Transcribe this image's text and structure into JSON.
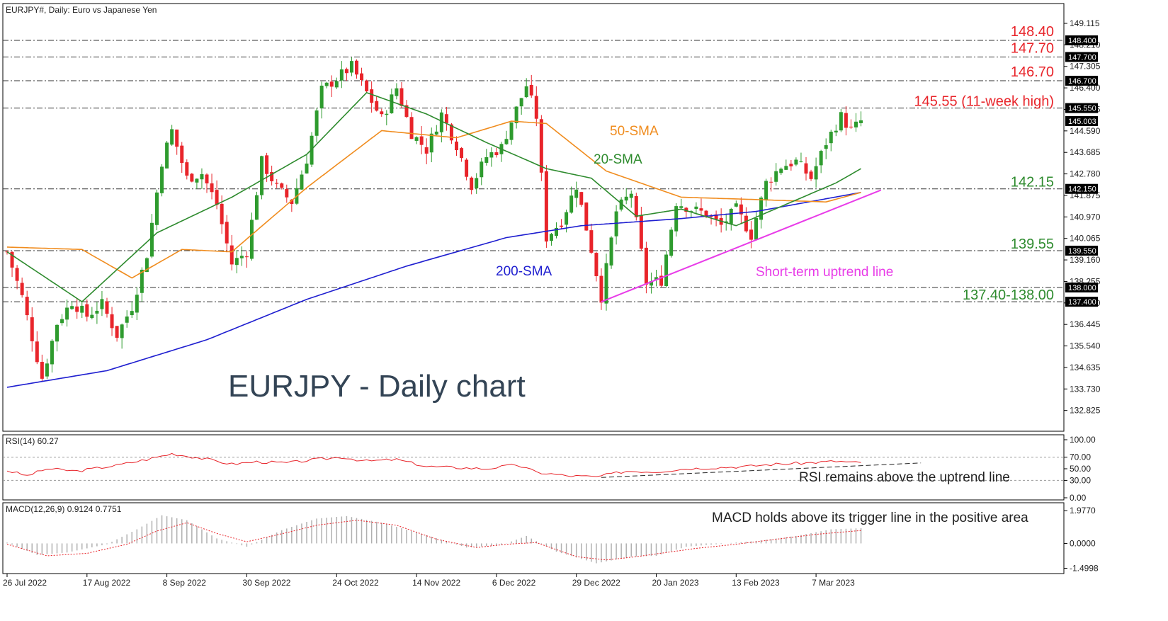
{
  "header": {
    "symbol_info": "EURJPY#, Daily:  Euro vs Japanese Yen",
    "rsi_label": "RSI(14) 60.27",
    "macd_label": "MACD(12,26,9) 0.9124 0.7751"
  },
  "colors": {
    "bull": "#2e9b2e",
    "bear": "#e8242a",
    "sma20": "#2e8b2e",
    "sma50": "#f08c1e",
    "sma200": "#1f1fd0",
    "uptrend": "#e83ce8",
    "resistance_label": "#e8242a",
    "support_label": "#2e8b2e",
    "rsi_line": "#e8242a",
    "macd_signal": "#e8242a",
    "macd_hist": "#b0b0b0",
    "title": "#334455"
  },
  "chart_data": [
    {
      "type": "candlestick",
      "title": "EURJPY - Daily chart",
      "x_ticks": [
        "26 Jul 2022",
        "17 Aug 2022",
        "8 Sep 2022",
        "30 Sep 2022",
        "24 Oct 2022",
        "14 Nov 2022",
        "6 Dec 2022",
        "29 Dec 2022",
        "20 Jan 2023",
        "13 Feb 2023",
        "7 Mar 2023"
      ],
      "x_tick_index": [
        0,
        16,
        32,
        48,
        66,
        82,
        98,
        114,
        130,
        146,
        162
      ],
      "y_ticks": [
        149.115,
        148.21,
        147.305,
        146.4,
        145.495,
        144.59,
        143.685,
        142.78,
        141.875,
        140.97,
        140.065,
        139.16,
        138.255,
        137.35,
        136.445,
        135.54,
        134.635,
        133.73,
        132.825
      ],
      "ylim": [
        132.1,
        149.8
      ],
      "price_boxes": [
        148.4,
        147.7,
        146.7,
        145.55,
        145.003,
        142.15,
        139.55,
        138.0,
        137.4
      ],
      "levels": [
        {
          "value": 148.4,
          "label": "148.40",
          "kind": "resistance"
        },
        {
          "value": 147.7,
          "label": "147.70",
          "kind": "resistance"
        },
        {
          "value": 146.7,
          "label": "146.70",
          "kind": "resistance"
        },
        {
          "value": 145.55,
          "label": "145.55 (11-week high)",
          "kind": "resistance"
        },
        {
          "value": 142.15,
          "label": "142.15",
          "kind": "support"
        },
        {
          "value": 139.55,
          "label": "139.55",
          "kind": "support"
        },
        {
          "value": 138.0,
          "label": "",
          "kind": "support"
        },
        {
          "value": 137.4,
          "label": "137.40-138.00",
          "kind": "support"
        }
      ],
      "anchors": [
        [
          0,
          139.5
        ],
        [
          3,
          137.6
        ],
        [
          7,
          134.2
        ],
        [
          10,
          136.5
        ],
        [
          13,
          137.4
        ],
        [
          16,
          136.8
        ],
        [
          19,
          137.3
        ],
        [
          22,
          136.0
        ],
        [
          25,
          137.2
        ],
        [
          28,
          139.4
        ],
        [
          31,
          143.3
        ],
        [
          33,
          144.6
        ],
        [
          36,
          142.6
        ],
        [
          39,
          142.8
        ],
        [
          42,
          141.5
        ],
        [
          45,
          139.0
        ],
        [
          48,
          139.5
        ],
        [
          51,
          143.3
        ],
        [
          54,
          142.2
        ],
        [
          57,
          141.6
        ],
        [
          60,
          143.4
        ],
        [
          63,
          146.3
        ],
        [
          66,
          146.8
        ],
        [
          69,
          147.3
        ],
        [
          72,
          146.2
        ],
        [
          75,
          145.1
        ],
        [
          78,
          146.4
        ],
        [
          81,
          144.5
        ],
        [
          84,
          143.8
        ],
        [
          87,
          145.3
        ],
        [
          90,
          144.0
        ],
        [
          93,
          142.3
        ],
        [
          96,
          143.5
        ],
        [
          99,
          143.9
        ],
        [
          101,
          145.0
        ],
        [
          104,
          146.5
        ],
        [
          106,
          145.2
        ],
        [
          108,
          140.1
        ],
        [
          111,
          140.8
        ],
        [
          114,
          142.3
        ],
        [
          117,
          139.6
        ],
        [
          119,
          137.6
        ],
        [
          122,
          141.2
        ],
        [
          125,
          142.0
        ],
        [
          128,
          138.2
        ],
        [
          131,
          138.3
        ],
        [
          134,
          141.6
        ],
        [
          137,
          141.3
        ],
        [
          140,
          141.1
        ],
        [
          143,
          140.6
        ],
        [
          146,
          141.3
        ],
        [
          149,
          140.2
        ],
        [
          152,
          142.4
        ],
        [
          155,
          143.1
        ],
        [
          158,
          143.3
        ],
        [
          161,
          142.6
        ],
        [
          164,
          144.1
        ],
        [
          167,
          145.2
        ],
        [
          169,
          144.6
        ],
        [
          171,
          145.0
        ]
      ],
      "sma20": [
        [
          0,
          139.5
        ],
        [
          15,
          137.4
        ],
        [
          30,
          140.3
        ],
        [
          45,
          141.8
        ],
        [
          60,
          143.6
        ],
        [
          72,
          146.2
        ],
        [
          84,
          145.3
        ],
        [
          96,
          144.1
        ],
        [
          108,
          143.0
        ],
        [
          117,
          142.6
        ],
        [
          126,
          141.0
        ],
        [
          135,
          141.3
        ],
        [
          146,
          140.6
        ],
        [
          156,
          141.5
        ],
        [
          166,
          142.4
        ],
        [
          171,
          143.0
        ]
      ],
      "sma50": [
        [
          0,
          139.7
        ],
        [
          15,
          139.6
        ],
        [
          25,
          138.4
        ],
        [
          35,
          139.6
        ],
        [
          45,
          139.5
        ],
        [
          60,
          142.2
        ],
        [
          75,
          144.6
        ],
        [
          90,
          144.3
        ],
        [
          101,
          145.0
        ],
        [
          108,
          144.9
        ],
        [
          120,
          142.9
        ],
        [
          135,
          141.8
        ],
        [
          150,
          141.7
        ],
        [
          164,
          141.6
        ],
        [
          171,
          142.0
        ]
      ],
      "sma200": [
        [
          0,
          133.8
        ],
        [
          20,
          134.5
        ],
        [
          40,
          135.8
        ],
        [
          60,
          137.5
        ],
        [
          80,
          138.9
        ],
        [
          100,
          140.1
        ],
        [
          115,
          140.6
        ],
        [
          135,
          140.9
        ],
        [
          150,
          141.2
        ],
        [
          171,
          142.0
        ]
      ],
      "uptrend_line": [
        [
          119,
          137.4
        ],
        [
          175,
          142.1
        ]
      ],
      "annotations": {
        "sma50": "50-SMA",
        "sma20": "20-SMA",
        "sma200": "200-SMA",
        "uptrend": "Short-term uptrend line"
      }
    },
    {
      "type": "line",
      "name": "RSI(14)",
      "y_ticks": [
        100.0,
        70.0,
        50.0,
        30.0,
        0.0
      ],
      "ylim": [
        0,
        100
      ],
      "reference_levels": [
        70,
        30
      ],
      "anchors": [
        [
          0,
          47
        ],
        [
          4,
          38
        ],
        [
          8,
          50
        ],
        [
          14,
          46
        ],
        [
          22,
          56
        ],
        [
          28,
          66
        ],
        [
          33,
          76
        ],
        [
          39,
          68
        ],
        [
          45,
          58
        ],
        [
          50,
          62
        ],
        [
          56,
          60
        ],
        [
          62,
          66
        ],
        [
          67,
          70
        ],
        [
          72,
          63
        ],
        [
          78,
          66
        ],
        [
          84,
          54
        ],
        [
          90,
          52
        ],
        [
          96,
          50
        ],
        [
          102,
          57
        ],
        [
          106,
          44
        ],
        [
          112,
          38
        ],
        [
          118,
          36
        ],
        [
          124,
          46
        ],
        [
          130,
          45
        ],
        [
          136,
          50
        ],
        [
          142,
          52
        ],
        [
          148,
          54
        ],
        [
          154,
          58
        ],
        [
          160,
          60
        ],
        [
          166,
          63
        ],
        [
          171,
          60
        ]
      ],
      "trend_line": [
        [
          119,
          35
        ],
        [
          183,
          60
        ]
      ],
      "annotation": "RSI remains above the uptrend line"
    },
    {
      "type": "bar",
      "name": "MACD(12,26,9)",
      "y_ticks": [
        1.977,
        0.0,
        -1.4998
      ],
      "ylim": [
        -1.65,
        2.2
      ],
      "macd_anchors": [
        [
          0,
          0.05
        ],
        [
          6,
          -0.7
        ],
        [
          12,
          -0.55
        ],
        [
          20,
          -0.05
        ],
        [
          26,
          0.85
        ],
        [
          31,
          1.7
        ],
        [
          36,
          1.4
        ],
        [
          42,
          0.3
        ],
        [
          48,
          -0.2
        ],
        [
          55,
          0.8
        ],
        [
          62,
          1.5
        ],
        [
          68,
          1.65
        ],
        [
          75,
          1.25
        ],
        [
          84,
          0.5
        ],
        [
          92,
          -0.25
        ],
        [
          99,
          -0.1
        ],
        [
          104,
          0.45
        ],
        [
          110,
          -0.5
        ],
        [
          118,
          -1.2
        ],
        [
          125,
          -0.8
        ],
        [
          130,
          -0.75
        ],
        [
          136,
          -0.2
        ],
        [
          142,
          -0.05
        ],
        [
          150,
          0.15
        ],
        [
          158,
          0.45
        ],
        [
          165,
          0.85
        ],
        [
          171,
          0.92
        ]
      ],
      "signal_anchors": [
        [
          0,
          -0.05
        ],
        [
          8,
          -0.75
        ],
        [
          16,
          -0.6
        ],
        [
          24,
          -0.05
        ],
        [
          30,
          0.75
        ],
        [
          36,
          1.25
        ],
        [
          42,
          0.6
        ],
        [
          48,
          0.1
        ],
        [
          56,
          0.65
        ],
        [
          62,
          1.1
        ],
        [
          70,
          1.4
        ],
        [
          78,
          1.1
        ],
        [
          86,
          0.25
        ],
        [
          94,
          -0.25
        ],
        [
          100,
          -0.05
        ],
        [
          106,
          0.05
        ],
        [
          114,
          -0.8
        ],
        [
          120,
          -1.0
        ],
        [
          126,
          -0.8
        ],
        [
          132,
          -0.55
        ],
        [
          138,
          -0.3
        ],
        [
          146,
          -0.05
        ],
        [
          154,
          0.25
        ],
        [
          162,
          0.55
        ],
        [
          171,
          0.78
        ]
      ],
      "annotation": "MACD holds above its trigger line in the positive area"
    }
  ]
}
